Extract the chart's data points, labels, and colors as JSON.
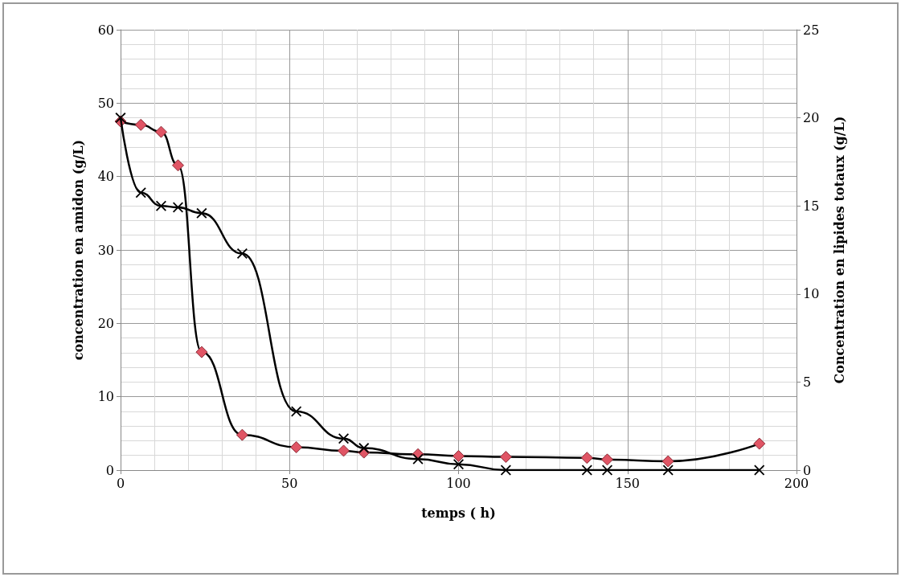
{
  "chart_data": {
    "type": "line",
    "xlabel": "temps ( h)",
    "ylabel": "concentration en amidon (g/L)",
    "y2label": "Concentration en lipides totaux (g/L)",
    "xlim": [
      0,
      200
    ],
    "xticks": [
      0,
      50,
      100,
      150,
      200
    ],
    "ylim": [
      0,
      60
    ],
    "yticks": [
      0,
      10,
      20,
      30,
      40,
      50,
      60
    ],
    "y2lim": [
      0,
      25
    ],
    "y2ticks": [
      0,
      5,
      10,
      15,
      20,
      25
    ],
    "grid": true,
    "series": [
      {
        "color": "#000000",
        "marker": "cross",
        "x": [
          0,
          6,
          12,
          17,
          24,
          36,
          52,
          66,
          72,
          88,
          100,
          114,
          138,
          144,
          162,
          189
        ],
        "values": [
          48,
          37.8,
          36,
          35.8,
          35,
          29.5,
          8,
          4.3,
          3,
          1.5,
          0.8,
          0,
          0,
          0,
          0,
          0
        ]
      },
      {
        "color": "#e05565",
        "marker": "diamond",
        "axis": "y2",
        "x": [
          0,
          6,
          12,
          17,
          24,
          36,
          52,
          66,
          72,
          88,
          100,
          114,
          138,
          144,
          162,
          189
        ],
        "values": [
          19.8,
          19.6,
          19.2,
          17.3,
          6.7,
          2.0,
          1.3,
          1.1,
          1.0,
          0.9,
          0.8,
          0.75,
          0.7,
          0.6,
          0.5,
          1.5
        ]
      }
    ]
  }
}
